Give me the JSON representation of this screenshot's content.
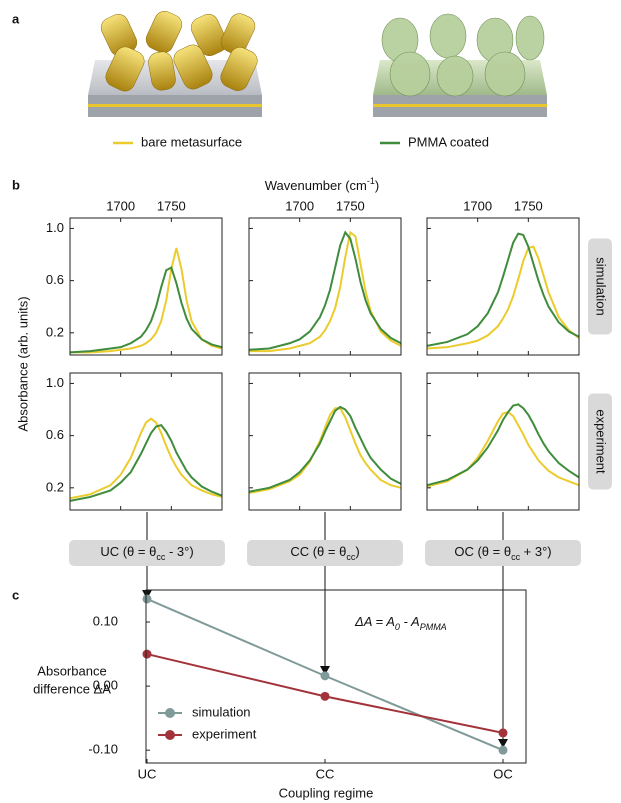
{
  "panel_labels": [
    "a",
    "b",
    "c"
  ],
  "legend": [
    {
      "name": "bare metasurface",
      "color": "#eccb2c"
    },
    {
      "name": "PMMA coated",
      "color": "#3f8c3c"
    }
  ],
  "spectra": {
    "x_label": [
      "Wavenumber (cm",
      "-1",
      ")"
    ],
    "y_label": "Absorbance (arb. units)",
    "row_labels": [
      "simulation",
      "experiment"
    ],
    "column_labels": [
      [
        "UC (θ = θ",
        "cc",
        " - 3°)"
      ],
      [
        "CC (θ = θ",
        "cc",
        ")"
      ],
      [
        "OC (θ = θ",
        "cc",
        " + 3°)"
      ]
    ]
  },
  "chart_data": [
    {
      "type": "line",
      "x": [
        1650,
        1670,
        1690,
        1700,
        1710,
        1720,
        1725,
        1730,
        1735,
        1740,
        1745,
        1750,
        1755,
        1760,
        1765,
        1770,
        1780,
        1790,
        1800
      ],
      "xlim": [
        1650,
        1800
      ],
      "xticks": [
        1700,
        1750
      ],
      "ylim": [
        0.03,
        1.08
      ],
      "yticks": [
        {
          "value": 1.0,
          "label": "1.0"
        },
        0.6,
        0.2
      ],
      "series": [
        {
          "color": "#eccb2c",
          "values": [
            0.05,
            0.05,
            0.06,
            0.07,
            0.08,
            0.1,
            0.12,
            0.15,
            0.2,
            0.29,
            0.45,
            0.69,
            0.85,
            0.69,
            0.45,
            0.29,
            0.15,
            0.1,
            0.08
          ]
        },
        {
          "color": "#3f8c3c",
          "values": [
            0.05,
            0.06,
            0.08,
            0.09,
            0.12,
            0.17,
            0.22,
            0.29,
            0.4,
            0.55,
            0.68,
            0.7,
            0.58,
            0.43,
            0.31,
            0.23,
            0.15,
            0.11,
            0.09
          ]
        }
      ]
    },
    {
      "type": "line",
      "x": [
        1650,
        1670,
        1690,
        1700,
        1710,
        1720,
        1725,
        1730,
        1735,
        1740,
        1745,
        1750,
        1755,
        1760,
        1765,
        1770,
        1780,
        1790,
        1800
      ],
      "xlim": [
        1650,
        1800
      ],
      "xticks": [
        1700,
        1750
      ],
      "ylim": [
        0.03,
        1.08
      ],
      "yticks": [
        {
          "value": 1.0,
          "label": "1.0"
        },
        0.6,
        0.2
      ],
      "series": [
        {
          "color": "#eccb2c",
          "values": [
            0.06,
            0.06,
            0.08,
            0.1,
            0.12,
            0.17,
            0.22,
            0.29,
            0.39,
            0.55,
            0.78,
            0.97,
            0.94,
            0.73,
            0.52,
            0.37,
            0.21,
            0.14,
            0.1
          ]
        },
        {
          "color": "#3f8c3c",
          "values": [
            0.07,
            0.08,
            0.12,
            0.15,
            0.21,
            0.32,
            0.41,
            0.53,
            0.7,
            0.87,
            0.97,
            0.92,
            0.77,
            0.59,
            0.45,
            0.35,
            0.23,
            0.16,
            0.12
          ]
        }
      ]
    },
    {
      "type": "line",
      "x": [
        1650,
        1670,
        1690,
        1700,
        1710,
        1720,
        1725,
        1730,
        1735,
        1740,
        1745,
        1750,
        1755,
        1760,
        1765,
        1770,
        1780,
        1790,
        1800
      ],
      "xlim": [
        1650,
        1800
      ],
      "xticks": [
        1700,
        1750
      ],
      "ylim": [
        0.03,
        1.08
      ],
      "yticks": [
        {
          "value": 1.0,
          "label": "1.0"
        },
        0.6,
        0.2
      ],
      "series": [
        {
          "color": "#eccb2c",
          "values": [
            0.08,
            0.09,
            0.12,
            0.14,
            0.18,
            0.25,
            0.31,
            0.38,
            0.48,
            0.61,
            0.75,
            0.85,
            0.86,
            0.77,
            0.64,
            0.51,
            0.32,
            0.22,
            0.16
          ]
        },
        {
          "color": "#3f8c3c",
          "values": [
            0.1,
            0.13,
            0.19,
            0.25,
            0.35,
            0.51,
            0.63,
            0.76,
            0.89,
            0.96,
            0.95,
            0.86,
            0.73,
            0.6,
            0.49,
            0.4,
            0.28,
            0.21,
            0.17
          ]
        }
      ]
    },
    {
      "type": "line",
      "x": [
        1650,
        1670,
        1690,
        1700,
        1710,
        1720,
        1725,
        1730,
        1735,
        1740,
        1745,
        1750,
        1755,
        1760,
        1765,
        1770,
        1780,
        1790,
        1800
      ],
      "xlim": [
        1650,
        1800
      ],
      "xticks": [
        1700,
        1750
      ],
      "ylim": [
        0.03,
        1.08
      ],
      "yticks": [
        {
          "value": 1.0,
          "label": "1.0"
        },
        0.6,
        0.2
      ],
      "series": [
        {
          "color": "#eccb2c",
          "values": [
            0.12,
            0.15,
            0.22,
            0.3,
            0.43,
            0.62,
            0.7,
            0.73,
            0.7,
            0.62,
            0.52,
            0.43,
            0.36,
            0.3,
            0.26,
            0.22,
            0.18,
            0.15,
            0.13
          ]
        },
        {
          "color": "#3f8c3c",
          "values": [
            0.1,
            0.13,
            0.18,
            0.24,
            0.32,
            0.46,
            0.54,
            0.62,
            0.67,
            0.68,
            0.63,
            0.56,
            0.47,
            0.4,
            0.33,
            0.28,
            0.21,
            0.17,
            0.14
          ]
        }
      ]
    },
    {
      "type": "line",
      "x": [
        1650,
        1670,
        1690,
        1700,
        1710,
        1720,
        1725,
        1730,
        1735,
        1740,
        1745,
        1750,
        1755,
        1760,
        1765,
        1770,
        1780,
        1790,
        1800
      ],
      "xlim": [
        1650,
        1800
      ],
      "xticks": [
        1700,
        1750
      ],
      "ylim": [
        0.03,
        1.08
      ],
      "yticks": [
        {
          "value": 1.0,
          "label": "1.0"
        },
        0.6,
        0.2
      ],
      "series": [
        {
          "color": "#eccb2c",
          "values": [
            0.16,
            0.19,
            0.25,
            0.3,
            0.4,
            0.56,
            0.66,
            0.76,
            0.81,
            0.81,
            0.74,
            0.64,
            0.54,
            0.45,
            0.39,
            0.34,
            0.26,
            0.22,
            0.2
          ]
        },
        {
          "color": "#3f8c3c",
          "values": [
            0.17,
            0.2,
            0.26,
            0.32,
            0.41,
            0.54,
            0.63,
            0.71,
            0.79,
            0.82,
            0.8,
            0.75,
            0.66,
            0.58,
            0.5,
            0.43,
            0.34,
            0.27,
            0.23
          ]
        }
      ]
    },
    {
      "type": "line",
      "x": [
        1650,
        1670,
        1690,
        1700,
        1710,
        1720,
        1725,
        1730,
        1735,
        1740,
        1745,
        1750,
        1755,
        1760,
        1765,
        1770,
        1780,
        1790,
        1800
      ],
      "xlim": [
        1650,
        1800
      ],
      "xticks": [
        1700,
        1750
      ],
      "ylim": [
        0.03,
        1.08
      ],
      "yticks": [
        {
          "value": 1.0,
          "label": "1.0"
        },
        0.6,
        0.2
      ],
      "series": [
        {
          "color": "#eccb2c",
          "values": [
            0.21,
            0.25,
            0.34,
            0.43,
            0.56,
            0.71,
            0.77,
            0.78,
            0.75,
            0.68,
            0.61,
            0.53,
            0.47,
            0.41,
            0.37,
            0.33,
            0.28,
            0.25,
            0.22
          ]
        },
        {
          "color": "#3f8c3c",
          "values": [
            0.22,
            0.26,
            0.34,
            0.41,
            0.51,
            0.64,
            0.72,
            0.78,
            0.83,
            0.84,
            0.81,
            0.76,
            0.69,
            0.61,
            0.54,
            0.48,
            0.39,
            0.33,
            0.28
          ]
        }
      ]
    },
    {
      "type": "line",
      "categories": [
        "UC",
        "CC",
        "OC"
      ],
      "x_label": "Coupling regime",
      "y_label": [
        "Absorbance",
        "difference ΔA"
      ],
      "annotation": [
        "ΔA = A",
        "0",
        " - A",
        "PMMA"
      ],
      "ylim": [
        -0.12,
        0.15
      ],
      "yticks": [
        {
          "value": 0.1,
          "label": "0.10"
        },
        {
          "value": 0,
          "label": "0.00"
        },
        {
          "value": -0.1,
          "label": "-0.10"
        }
      ],
      "legend_position": "lower left",
      "series": [
        {
          "name": "simulation",
          "color": "#7f9a99",
          "values": [
            0.136,
            0.016,
            -0.1
          ]
        },
        {
          "name": "experiment",
          "color": "#a3333a",
          "values": [
            0.05,
            -0.016,
            -0.073
          ]
        }
      ]
    }
  ]
}
